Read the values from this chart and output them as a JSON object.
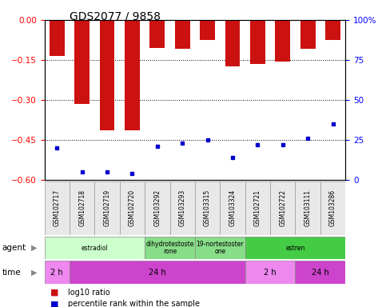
{
  "title": "GDS2077 / 9858",
  "samples": [
    "GSM102717",
    "GSM102718",
    "GSM102719",
    "GSM102720",
    "GSM103292",
    "GSM103293",
    "GSM103315",
    "GSM103324",
    "GSM102721",
    "GSM102722",
    "GSM103111",
    "GSM103286"
  ],
  "log10_ratio": [
    -0.135,
    -0.315,
    -0.415,
    -0.415,
    -0.105,
    -0.108,
    -0.075,
    -0.175,
    -0.165,
    -0.155,
    -0.108,
    -0.075
  ],
  "percentile": [
    20,
    5,
    5,
    4,
    21,
    23,
    25,
    14,
    22,
    22,
    26,
    35
  ],
  "ylim_left": [
    -0.6,
    0.0
  ],
  "yticks_left": [
    0.0,
    -0.15,
    -0.3,
    -0.45,
    -0.6
  ],
  "ylim_right": [
    0,
    100
  ],
  "yticks_right": [
    0,
    25,
    50,
    75,
    100
  ],
  "bar_color": "#cc1111",
  "dot_color": "#0000cc",
  "bar_width": 0.6,
  "agent_groups": [
    {
      "label": "estradiol",
      "start": 0,
      "end": 3,
      "color": "#ccffcc"
    },
    {
      "label": "dihydrotestoste\nrone",
      "start": 4,
      "end": 5,
      "color": "#88dd88"
    },
    {
      "label": "19-nortestoster\none",
      "start": 6,
      "end": 7,
      "color": "#88dd88"
    },
    {
      "label": "estren",
      "start": 8,
      "end": 11,
      "color": "#44cc44"
    }
  ],
  "time_groups": [
    {
      "label": "2 h",
      "start": 0,
      "end": 0,
      "color": "#ee88ee"
    },
    {
      "label": "24 h",
      "start": 1,
      "end": 7,
      "color": "#cc44cc"
    },
    {
      "label": "2 h",
      "start": 8,
      "end": 9,
      "color": "#ee88ee"
    },
    {
      "label": "24 h",
      "start": 10,
      "end": 11,
      "color": "#cc44cc"
    }
  ],
  "legend_red_label": "log10 ratio",
  "legend_blue_label": "percentile rank within the sample",
  "background_color": "#ffffff",
  "plot_bg_color": "#ffffff",
  "title_fontsize": 10
}
